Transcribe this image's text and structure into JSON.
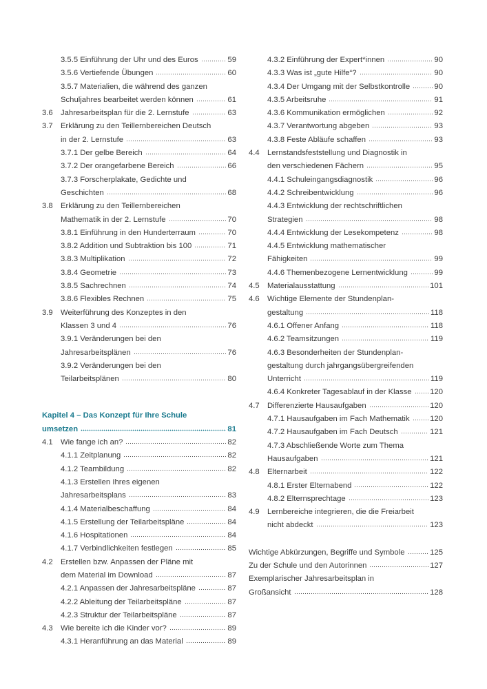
{
  "left": [
    {
      "num": "",
      "lines": [
        "3.5.5 Einführung der Uhr und des Euros"
      ],
      "page": "59"
    },
    {
      "num": "",
      "lines": [
        "3.5.6 Vertiefende Übungen"
      ],
      "page": "60"
    },
    {
      "num": "",
      "lines": [
        "3.5.7 Materialien, die während des ganzen",
        "Schuljahres bearbeitet werden können"
      ],
      "page": "61"
    },
    {
      "num": "3.6",
      "lines": [
        "Jahresarbeitsplan für die 2. Lernstufe"
      ],
      "page": "63"
    },
    {
      "num": "3.7",
      "lines": [
        "Erklärung zu den Teillernbereichen Deutsch",
        "in der 2. Lernstufe"
      ],
      "page": "63"
    },
    {
      "num": "",
      "lines": [
        "3.7.1 Der gelbe Bereich"
      ],
      "page": "64"
    },
    {
      "num": "",
      "lines": [
        "3.7.2 Der orangefarbene Bereich"
      ],
      "page": "66"
    },
    {
      "num": "",
      "lines": [
        "3.7.3 Forscherplakate, Gedichte und",
        "Geschichten"
      ],
      "page": "68"
    },
    {
      "num": "3.8",
      "lines": [
        "Erklärung zu den Teillernbereichen",
        "Mathematik in der 2. Lernstufe"
      ],
      "page": "70"
    },
    {
      "num": "",
      "lines": [
        "3.8.1 Einführung in den Hunderterraum"
      ],
      "page": "70"
    },
    {
      "num": "",
      "lines": [
        "3.8.2 Addition und Subtraktion bis 100"
      ],
      "page": "71"
    },
    {
      "num": "",
      "lines": [
        "3.8.3 Multiplikation"
      ],
      "page": "72"
    },
    {
      "num": "",
      "lines": [
        "3.8.4 Geometrie"
      ],
      "page": "73"
    },
    {
      "num": "",
      "lines": [
        "3.8.5 Sachrechnen"
      ],
      "page": "74"
    },
    {
      "num": "",
      "lines": [
        "3.8.6 Flexibles Rechnen"
      ],
      "page": "75"
    },
    {
      "num": "3.9",
      "lines": [
        "Weiterführung des Konzeptes in den",
        "Klassen 3 und 4"
      ],
      "page": "76"
    },
    {
      "num": "",
      "lines": [
        "3.9.1 Veränderungen bei den",
        "Jahresarbeitsplänen"
      ],
      "page": "76"
    },
    {
      "num": "",
      "lines": [
        "3.9.2 Veränderungen bei den",
        "Teilarbeitsplänen"
      ],
      "page": "80"
    },
    {
      "type": "chapter",
      "num": "",
      "lines": [
        "Kapitel 4 – Das Konzept für Ihre Schule",
        "umsetzen"
      ],
      "page": "81"
    },
    {
      "num": "4.1",
      "lines": [
        "Wie fange ich an?"
      ],
      "page": "82"
    },
    {
      "num": "",
      "lines": [
        "4.1.1 Zeitplanung"
      ],
      "page": "82"
    },
    {
      "num": "",
      "lines": [
        "4.1.2 Teambildung"
      ],
      "page": "82"
    },
    {
      "num": "",
      "lines": [
        "4.1.3 Erstellen Ihres eigenen",
        "Jahresarbeitsplans"
      ],
      "page": "83"
    },
    {
      "num": "",
      "lines": [
        "4.1.4 Materialbeschaffung"
      ],
      "page": "84"
    },
    {
      "num": "",
      "lines": [
        "4.1.5 Erstellung der Teilarbeitspläne"
      ],
      "page": "84"
    },
    {
      "num": "",
      "lines": [
        "4.1.6 Hospitationen"
      ],
      "page": "84"
    },
    {
      "num": "",
      "lines": [
        "4.1.7 Verbindlichkeiten festlegen"
      ],
      "page": "85"
    },
    {
      "num": "4.2",
      "lines": [
        "Erstellen bzw. Anpassen der Pläne mit",
        "dem Material im Download"
      ],
      "page": "87"
    },
    {
      "num": "",
      "lines": [
        "4.2.1 Anpassen der Jahresarbeitspläne"
      ],
      "page": "87"
    },
    {
      "num": "",
      "lines": [
        "4.2.2 Ableitung der Teilarbeitspläne"
      ],
      "page": "87"
    },
    {
      "num": "",
      "lines": [
        "4.2.3 Struktur der Teilarbeitspläne"
      ],
      "page": "87"
    },
    {
      "num": "4.3",
      "lines": [
        "Wie bereite ich die Kinder vor?"
      ],
      "page": "89"
    },
    {
      "num": "",
      "lines": [
        "4.3.1 Heranführung an das Material"
      ],
      "page": "89"
    }
  ],
  "right": [
    {
      "num": "",
      "lines": [
        "4.3.2 Einführung der Expert*innen"
      ],
      "page": "90"
    },
    {
      "num": "",
      "lines": [
        "4.3.3 Was ist „gute Hilfe“?"
      ],
      "page": "90"
    },
    {
      "num": "",
      "lines": [
        "4.3.4 Der Umgang mit der Selbstkontrolle"
      ],
      "page": "90"
    },
    {
      "num": "",
      "lines": [
        "4.3.5 Arbeitsruhe"
      ],
      "page": "91"
    },
    {
      "num": "",
      "lines": [
        "4.3.6 Kommunikation ermöglichen"
      ],
      "page": "92"
    },
    {
      "num": "",
      "lines": [
        "4.3.7 Verantwortung abgeben"
      ],
      "page": "93"
    },
    {
      "num": "",
      "lines": [
        "4.3.8 Feste Abläufe schaffen"
      ],
      "page": "93"
    },
    {
      "num": "4.4",
      "lines": [
        "Lernstandsfeststellung und Diagnostik in",
        "den verschiedenen Fächern"
      ],
      "page": "95"
    },
    {
      "num": "",
      "lines": [
        "4.4.1 Schuleingangsdiagnostik"
      ],
      "page": "96"
    },
    {
      "num": "",
      "lines": [
        "4.4.2 Schreibentwicklung"
      ],
      "page": "96"
    },
    {
      "num": "",
      "lines": [
        "4.4.3 Entwicklung der rechtschriftlichen",
        "Strategien"
      ],
      "page": "98"
    },
    {
      "num": "",
      "lines": [
        "4.4.4 Entwicklung der Lesekompetenz"
      ],
      "page": "98"
    },
    {
      "num": "",
      "lines": [
        "4.4.5 Entwicklung mathematischer",
        "Fähigkeiten"
      ],
      "page": "99"
    },
    {
      "num": "",
      "lines": [
        "4.4.6 Themenbezogene Lernentwicklung"
      ],
      "page": "99"
    },
    {
      "num": "4.5",
      "lines": [
        "Materialausstattung"
      ],
      "page": "101"
    },
    {
      "num": "4.6",
      "lines": [
        "Wichtige Elemente der Stundenplan-",
        "gestaltung"
      ],
      "page": "118"
    },
    {
      "num": "",
      "lines": [
        "4.6.1 Offener Anfang"
      ],
      "page": "118"
    },
    {
      "num": "",
      "lines": [
        "4.6.2 Teamsitzungen"
      ],
      "page": "119"
    },
    {
      "num": "",
      "lines": [
        "4.6.3 Besonderheiten der Stundenplan-",
        "gestaltung durch jahrgangsübergreifenden",
        "Unterricht"
      ],
      "page": "119"
    },
    {
      "num": "",
      "lines": [
        "4.6.4 Konkreter Tagesablauf in der Klasse"
      ],
      "page": "120"
    },
    {
      "num": "4.7",
      "lines": [
        "Differenzierte Hausaufgaben"
      ],
      "page": "120"
    },
    {
      "num": "",
      "lines": [
        "4.7.1 Hausaufgaben im Fach Mathematik"
      ],
      "page": "120"
    },
    {
      "num": "",
      "lines": [
        "4.7.2 Hausaufgaben im Fach Deutsch"
      ],
      "page": "121"
    },
    {
      "num": "",
      "lines": [
        "4.7.3 Abschließende Worte zum Thema",
        "Hausaufgaben"
      ],
      "page": "121"
    },
    {
      "num": "4.8",
      "lines": [
        "Elternarbeit"
      ],
      "page": "122"
    },
    {
      "num": "",
      "lines": [
        "4.8.1 Erster Elternabend"
      ],
      "page": "122"
    },
    {
      "num": "",
      "lines": [
        "4.8.2 Elternsprechtage"
      ],
      "page": "123"
    },
    {
      "num": "4.9",
      "lines": [
        "Lernbereiche integrieren, die die Freiarbeit",
        "nicht abdeckt"
      ],
      "page": "123"
    },
    {
      "type": "plain",
      "gap": true,
      "num": "",
      "lines": [
        "Wichtige Abkürzungen, Begriffe und Symbole"
      ],
      "page": "125"
    },
    {
      "type": "plain",
      "num": "",
      "lines": [
        "Zu der Schule und den Autorinnen"
      ],
      "page": "127"
    },
    {
      "type": "plain",
      "num": "",
      "lines": [
        "Exemplarischer Jahresarbeitsplan in",
        "Großansicht"
      ],
      "page": "128"
    }
  ],
  "colors": {
    "text": "#3a3a3a",
    "chapter": "#1a7a8e"
  }
}
